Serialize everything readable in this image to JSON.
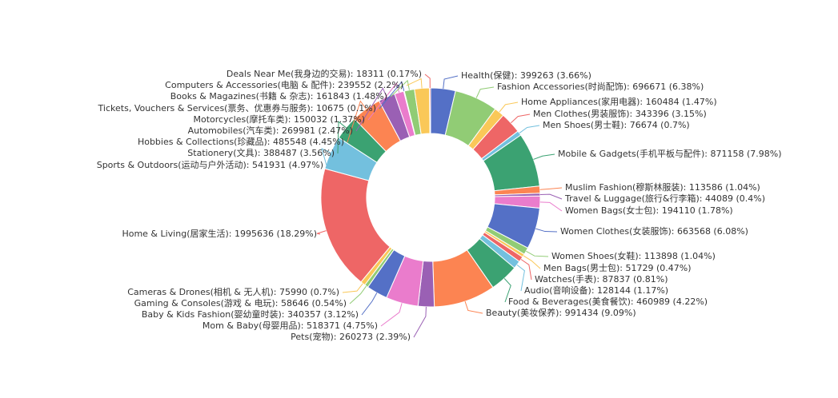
{
  "chart_data": {
    "type": "pie",
    "values": [
      399263,
      696671,
      160484,
      343396,
      76674,
      871158,
      113586,
      44089,
      194110,
      663568,
      113898,
      51729,
      87837,
      128144,
      460989,
      991434,
      260273,
      518371,
      340357,
      58646,
      75990,
      1995636,
      541931,
      388487,
      485548,
      269981,
      150032,
      10675,
      161843,
      239552,
      18311
    ],
    "value_labels": [
      "Health(保健): 399263 (3.66%)",
      "Fashion Accessories(时尚配饰): 696671 (6.38%)",
      "Home Appliances(家用电器): 160484 (1.47%)",
      "Men Clothes(男装服饰): 343396 (3.15%)",
      "Men Shoes(男士鞋): 76674 (0.7%)",
      "Mobile & Gadgets(手机平板与配件): 871158 (7.98%)",
      "Muslim Fashion(穆斯林服装): 113586 (1.04%)",
      "Travel & Luggage(旅行&行李箱): 44089 (0.4%)",
      "Women Bags(女士包): 194110 (1.78%)",
      "Women Clothes(女装服饰): 663568 (6.08%)",
      "Women Shoes(女鞋): 113898 (1.04%)",
      "Men Bags(男士包): 51729 (0.47%)",
      "Watches(手表): 87837 (0.81%)",
      "Audio(音响设备): 128144 (1.17%)",
      "Food & Beverages(美食餐饮): 460989 (4.22%)",
      "Beauty(美妆保养): 991434 (9.09%)",
      "Pets(宠物): 260273 (2.39%)",
      "Mom & Baby(母婴用品): 518371 (4.75%)",
      "Baby & Kids Fashion(婴幼童时装): 340357 (3.12%)",
      "Gaming & Consoles(游戏 & 电玩): 58646 (0.54%)",
      "Cameras & Drones(相机 & 无人机): 75990 (0.7%)",
      "Home & Living(居家生活): 1995636 (18.29%)",
      "Sports & Outdoors(运动与户外活动): 541931 (4.97%)",
      "Stationery(文具): 388487 (3.56%)",
      "Hobbies & Collections(珍藏品): 485548 (4.45%)",
      "Automobiles(汽车类): 269981 (2.47%)",
      "Motorcycles(摩托车类): 150032 (1.37%)",
      "Tickets, Vouchers & Services(票务、优惠券与服务): 10675 (0.1%)",
      "Books & Magazines(书籍 & 杂志): 161843 (1.48%)",
      "Computers & Accessories(电脑 & 配件): 239552 (2.2%)",
      "Deals Near Me(我身边的交易): 18311 (0.17%)"
    ],
    "colors": [
      "#5470c6",
      "#91cc75",
      "#fac858",
      "#ee6666",
      "#73c0de",
      "#3ba272",
      "#fc8452",
      "#9a60b4",
      "#ea7ccc"
    ]
  }
}
